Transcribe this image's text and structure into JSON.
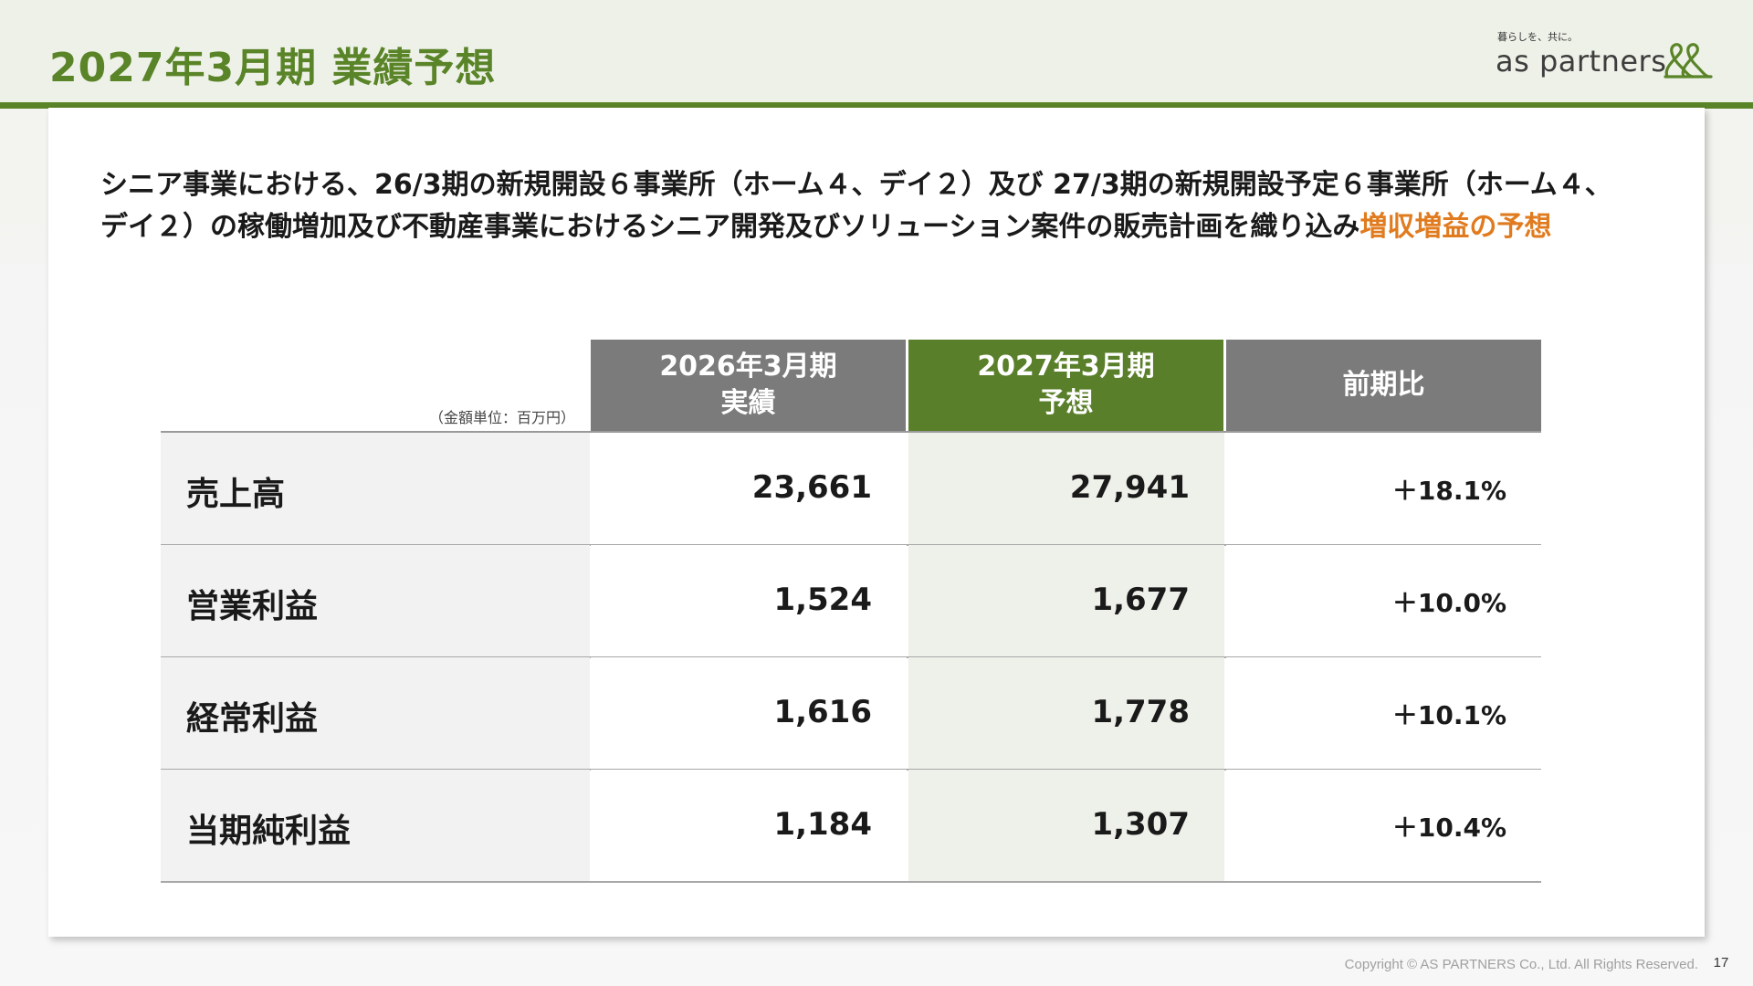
{
  "header": {
    "title": "2027年3月期 業績予想",
    "logo": {
      "tagline": "暮らしを、共に。",
      "wordmark": "as partners",
      "mark_icon": "intertwined-leaf-logo-icon",
      "mark_color": "#5a8428"
    }
  },
  "intro": {
    "text": "シニア事業における、26/3期の新規開設６事業所（ホーム４、デイ２）及び 27/3期の新規開設予定６事業所（ホーム４、デイ２）の稼働増加及び不動産事業におけるシニア開発及びソリューション案件の販売計画を織り込み",
    "highlight": "増収増益の予想",
    "highlight_color": "#e07b1f"
  },
  "table": {
    "unit_note": "（金額単位：百万円）",
    "columns": [
      {
        "line1": "2026年3月期",
        "line2": "実績"
      },
      {
        "line1": "2027年3月期",
        "line2": "予想"
      },
      {
        "line1": "前期比",
        "line2": ""
      }
    ],
    "rows": [
      {
        "label": "売上高",
        "actual": "23,661",
        "forecast": "27,941",
        "change": "＋18.1%"
      },
      {
        "label": "営業利益",
        "actual": "1,524",
        "forecast": "1,677",
        "change": "＋10.0%"
      },
      {
        "label": "経常利益",
        "actual": "1,616",
        "forecast": "1,778",
        "change": "＋10.1%"
      },
      {
        "label": "当期純利益",
        "actual": "1,184",
        "forecast": "1,307",
        "change": "＋10.4%"
      }
    ],
    "colors": {
      "header_gray": "#7b7b7b",
      "header_green": "#5a7f2a",
      "forecast_fill": "#eef1e9",
      "label_fill": "#f2f2f2"
    }
  },
  "footer": {
    "copyright": "Copyright © AS PARTNERS Co., Ltd. All Rights Reserved.",
    "page_number": "17"
  }
}
